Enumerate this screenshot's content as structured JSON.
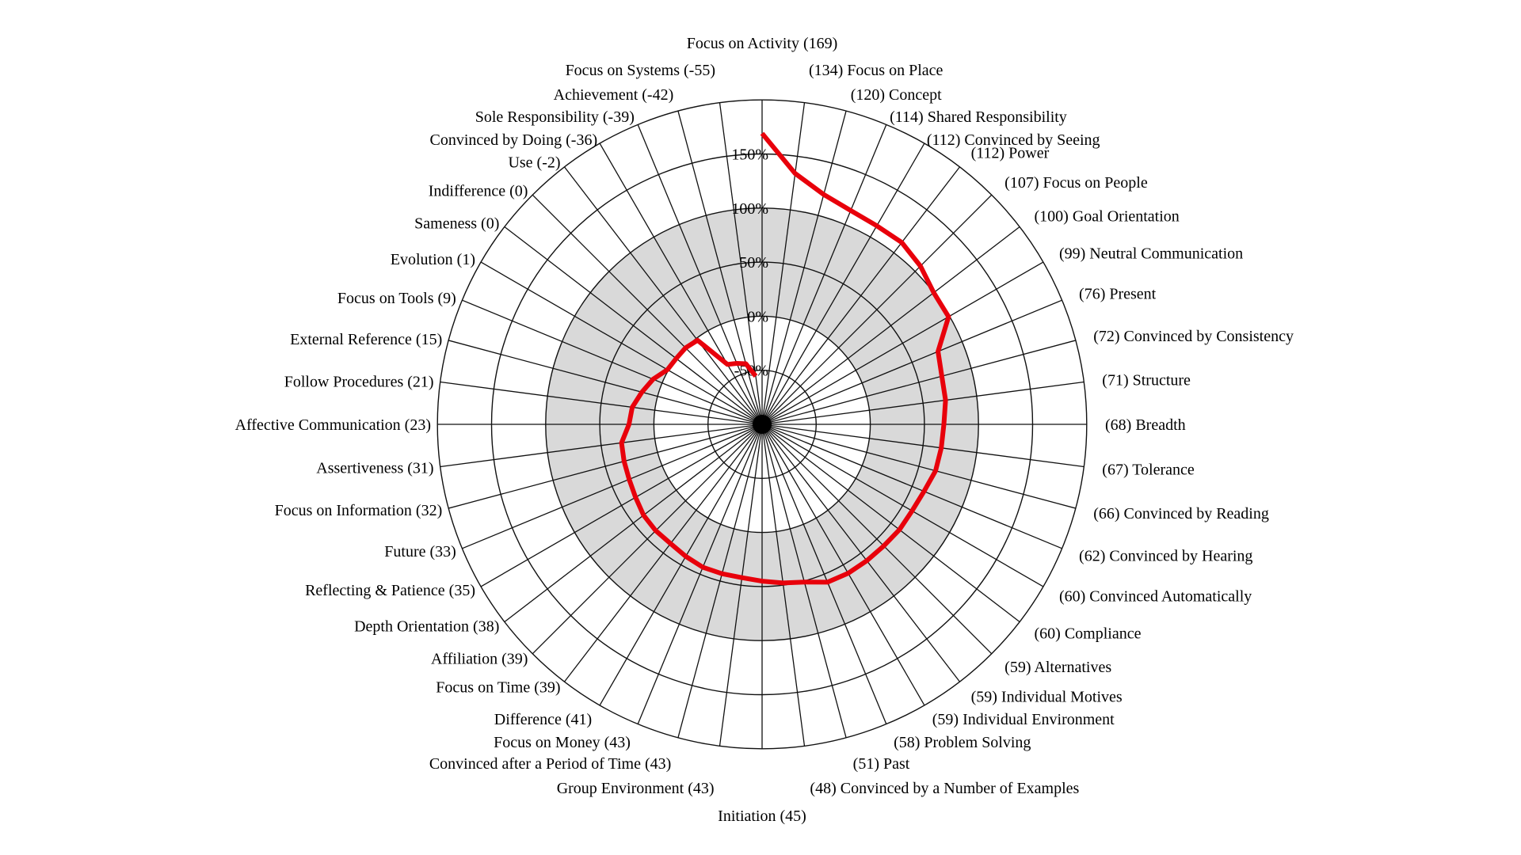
{
  "chart_data": {
    "type": "radar",
    "subtype": "polar-spiral-profile",
    "unit": "%",
    "grid": "on",
    "angular_axes_count": 48,
    "angular_step_degrees": 7.5,
    "start_angle": "top, clockwise, sorted descending",
    "radial_tick_labels": [
      "150%",
      "100%",
      "50%",
      "0%",
      "-50%"
    ],
    "radial_tick_values": [
      150,
      100,
      50,
      0,
      -50
    ],
    "ring_values": [
      -50,
      0,
      50,
      100,
      150,
      200
    ],
    "radial_range": [
      -100,
      200
    ],
    "highlight_band": {
      "from": 0,
      "to": 100,
      "color": "#d9d9d9"
    },
    "line_color": "#e8000b",
    "grid_color": "#111111",
    "background_color": "#ffffff",
    "axes": [
      {
        "label": "Focus on Activity (169)",
        "name": "Focus on Activity",
        "value": 169
      },
      {
        "label": "(134) Focus on Place",
        "name": "Focus on Place",
        "value": 134
      },
      {
        "label": "(120) Concept",
        "name": "Concept",
        "value": 120
      },
      {
        "label": "(114) Shared Responsibility",
        "name": "Shared Responsibility",
        "value": 114
      },
      {
        "label": "(112) Convinced by Seeing",
        "name": "Convinced by Seeing",
        "value": 112
      },
      {
        "label": "(112) Power",
        "name": "Power",
        "value": 112
      },
      {
        "label": "(107) Focus on People",
        "name": "Focus on People",
        "value": 107
      },
      {
        "label": "(100) Goal Orientation",
        "name": "Goal Orientation",
        "value": 100
      },
      {
        "label": "(99) Neutral Communication",
        "name": "Neutral Communication",
        "value": 99
      },
      {
        "label": "(76) Present",
        "name": "Present",
        "value": 76
      },
      {
        "label": "(72) Convinced by Consistency",
        "name": "Convinced by Consistency",
        "value": 72
      },
      {
        "label": "(71) Structure",
        "name": "Structure",
        "value": 71
      },
      {
        "label": "(68) Breadth",
        "name": "Breadth",
        "value": 68
      },
      {
        "label": "(67) Tolerance",
        "name": "Tolerance",
        "value": 67
      },
      {
        "label": "(66) Convinced by Reading",
        "name": "Convinced by Reading",
        "value": 66
      },
      {
        "label": "(62) Convinced by Hearing",
        "name": "Convinced by Hearing",
        "value": 62
      },
      {
        "label": "(60) Convinced Automatically",
        "name": "Convinced Automatically",
        "value": 60
      },
      {
        "label": "(60) Compliance",
        "name": "Compliance",
        "value": 60
      },
      {
        "label": "(59) Alternatives",
        "name": "Alternatives",
        "value": 59
      },
      {
        "label": "(59) Individual Motives",
        "name": "Individual Motives",
        "value": 59
      },
      {
        "label": "(59) Individual Environment",
        "name": "Individual Environment",
        "value": 59
      },
      {
        "label": "(58) Problem Solving",
        "name": "Problem Solving",
        "value": 58
      },
      {
        "label": "(51) Past",
        "name": "Past",
        "value": 51
      },
      {
        "label": "(48) Convinced by a Number of Examples",
        "name": "Convinced by a Number of Examples",
        "value": 48
      },
      {
        "label": "Initiation (45)",
        "name": "Initiation",
        "value": 45
      },
      {
        "label": "Group Environment (43)",
        "name": "Group Environment",
        "value": 43
      },
      {
        "label": "Convinced after a Period of Time (43)",
        "name": "Convinced after a Period of Time",
        "value": 43
      },
      {
        "label": "Focus on Money (43)",
        "name": "Focus on Money",
        "value": 43
      },
      {
        "label": "Difference (41)",
        "name": "Difference",
        "value": 41
      },
      {
        "label": "Focus on Time (39)",
        "name": "Focus on Time",
        "value": 39
      },
      {
        "label": "Affiliation (39)",
        "name": "Affiliation",
        "value": 39
      },
      {
        "label": "Depth Orientation (38)",
        "name": "Depth Orientation",
        "value": 38
      },
      {
        "label": "Reflecting & Patience (35)",
        "name": "Reflecting & Patience",
        "value": 35
      },
      {
        "label": "Future (33)",
        "name": "Future",
        "value": 33
      },
      {
        "label": "Focus on Information (32)",
        "name": "Focus on Information",
        "value": 32
      },
      {
        "label": "Assertiveness (31)",
        "name": "Assertiveness",
        "value": 31
      },
      {
        "label": "Affective Communication (23)",
        "name": "Affective Communication",
        "value": 23
      },
      {
        "label": "Follow Procedures (21)",
        "name": "Follow Procedures",
        "value": 21
      },
      {
        "label": "External Reference (15)",
        "name": "External Reference",
        "value": 15
      },
      {
        "label": "Focus on Tools (9)",
        "name": "Focus on Tools",
        "value": 9
      },
      {
        "label": "Evolution (1)",
        "name": "Evolution",
        "value": 1
      },
      {
        "label": "Sameness (0)",
        "name": "Sameness",
        "value": 0
      },
      {
        "label": "Indifference (0)",
        "name": "Indifference",
        "value": 0
      },
      {
        "label": "Use (-2)",
        "name": "Use",
        "value": -2
      },
      {
        "label": "Convinced by Doing (-36)",
        "name": "Convinced by Doing",
        "value": -36
      },
      {
        "label": "Sole Responsibility (-39)",
        "name": "Sole Responsibility",
        "value": -39
      },
      {
        "label": "Achievement (-42)",
        "name": "Achievement",
        "value": -42
      },
      {
        "label": "Focus on Systems (-55)",
        "name": "Focus on Systems",
        "value": -55
      }
    ]
  }
}
